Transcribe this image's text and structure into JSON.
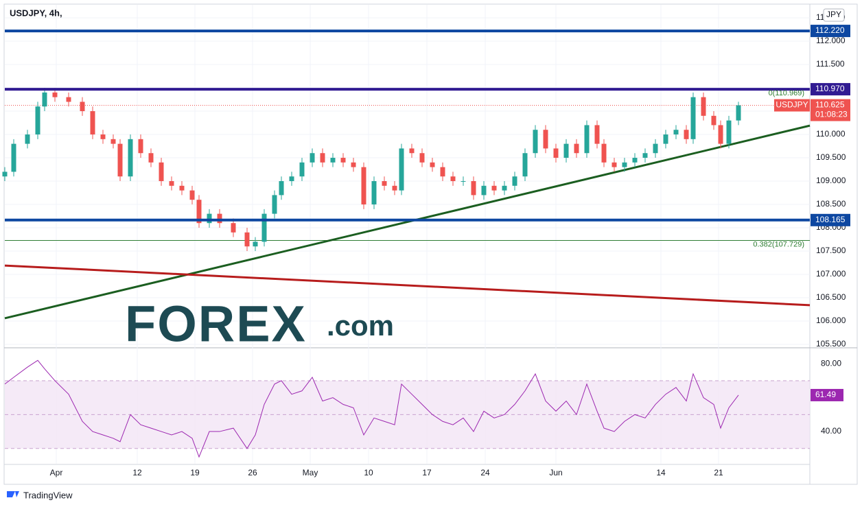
{
  "chart_data": {
    "type": "candlestick",
    "title": "USDJPY, 4h,",
    "currency": "JPY",
    "up_color": "#26a69a",
    "down_color": "#ef5350",
    "x": [
      0,
      13,
      33,
      48,
      58,
      73,
      93,
      113,
      128,
      143,
      158,
      168,
      183,
      198,
      213,
      228,
      243,
      258,
      273,
      283,
      298,
      313,
      333,
      353,
      365,
      378,
      393,
      403,
      418,
      433,
      448,
      463,
      478,
      493,
      508,
      523,
      538,
      553,
      568,
      578,
      593,
      608,
      623,
      638,
      653,
      668,
      683,
      698,
      713,
      728,
      743,
      758,
      773,
      788,
      803,
      818,
      833,
      848,
      863,
      873,
      888,
      903,
      918,
      933,
      948,
      963,
      978,
      993,
      1003,
      1018,
      1033,
      1043,
      1055,
      1069
    ],
    "open": [
      109.1,
      109.2,
      109.8,
      110.0,
      110.6,
      110.9,
      110.8,
      110.7,
      110.5,
      110.0,
      109.9,
      109.8,
      109.1,
      109.9,
      109.6,
      109.4,
      109.0,
      108.9,
      108.8,
      108.6,
      108.1,
      108.3,
      108.1,
      107.9,
      107.6,
      107.7,
      108.3,
      108.7,
      109.0,
      109.1,
      109.4,
      109.6,
      109.4,
      109.5,
      109.4,
      109.3,
      108.5,
      109.0,
      108.9,
      108.8,
      109.7,
      109.6,
      109.4,
      109.3,
      109.1,
      109.0,
      109.0,
      108.7,
      108.9,
      108.8,
      108.9,
      109.1,
      109.6,
      110.1,
      109.7,
      109.5,
      109.8,
      109.6,
      110.2,
      109.8,
      109.4,
      109.3,
      109.4,
      109.5,
      109.6,
      109.8,
      110.0,
      110.1,
      109.9,
      110.8,
      110.4,
      110.2,
      109.8,
      110.3
    ],
    "high": [
      109.3,
      109.9,
      110.1,
      110.7,
      111.0,
      111.0,
      110.9,
      110.8,
      110.6,
      110.1,
      110.0,
      109.9,
      110.0,
      110.0,
      109.7,
      109.5,
      109.1,
      109.0,
      108.9,
      108.7,
      108.4,
      108.4,
      108.2,
      108.0,
      107.8,
      108.4,
      108.8,
      109.1,
      109.2,
      109.5,
      109.7,
      109.7,
      109.6,
      109.6,
      109.5,
      109.4,
      109.1,
      109.1,
      109.0,
      109.8,
      109.8,
      109.7,
      109.5,
      109.4,
      109.2,
      109.1,
      109.1,
      109.0,
      109.0,
      109.0,
      109.2,
      109.7,
      110.2,
      110.2,
      109.8,
      109.9,
      109.9,
      110.3,
      110.3,
      109.9,
      109.5,
      109.5,
      109.6,
      109.7,
      109.9,
      110.1,
      110.2,
      110.2,
      110.9,
      110.9,
      110.5,
      110.3,
      110.4,
      110.7
    ],
    "low": [
      109.0,
      109.1,
      109.7,
      109.9,
      110.5,
      110.7,
      110.6,
      110.4,
      109.9,
      109.8,
      109.7,
      109.0,
      109.0,
      109.5,
      109.3,
      108.9,
      108.8,
      108.7,
      108.5,
      108.0,
      108.0,
      108.0,
      107.8,
      107.5,
      107.5,
      107.6,
      108.2,
      108.6,
      108.9,
      109.0,
      109.3,
      109.3,
      109.3,
      109.3,
      109.2,
      108.4,
      108.4,
      108.8,
      108.7,
      108.7,
      109.5,
      109.3,
      109.2,
      109.0,
      108.9,
      108.9,
      108.6,
      108.6,
      108.7,
      108.7,
      108.8,
      109.0,
      109.5,
      109.6,
      109.4,
      109.4,
      109.5,
      109.5,
      109.7,
      109.3,
      109.2,
      109.2,
      109.3,
      109.4,
      109.5,
      109.7,
      109.9,
      109.8,
      109.8,
      110.3,
      110.1,
      109.7,
      109.7,
      110.2
    ],
    "close": [
      109.2,
      109.8,
      110.0,
      110.6,
      110.9,
      110.8,
      110.7,
      110.5,
      110.0,
      109.9,
      109.8,
      109.1,
      109.9,
      109.6,
      109.4,
      109.0,
      108.9,
      108.8,
      108.6,
      108.1,
      108.3,
      108.1,
      107.9,
      107.6,
      107.7,
      108.3,
      108.7,
      109.0,
      109.1,
      109.4,
      109.6,
      109.4,
      109.5,
      109.4,
      109.3,
      108.5,
      109.0,
      108.9,
      108.8,
      109.7,
      109.6,
      109.4,
      109.3,
      109.1,
      109.0,
      109.0,
      108.7,
      108.9,
      108.8,
      108.9,
      109.1,
      109.6,
      110.1,
      109.7,
      109.5,
      109.8,
      109.6,
      110.2,
      109.8,
      109.4,
      109.3,
      109.4,
      109.5,
      109.6,
      109.8,
      110.0,
      110.1,
      109.9,
      110.8,
      110.4,
      110.2,
      109.8,
      110.3,
      110.625
    ],
    "xlim": [
      0,
      1173
    ],
    "xticks": [
      {
        "value": 75,
        "label": "Apr"
      },
      {
        "value": 193,
        "label": "12"
      },
      {
        "value": 277,
        "label": "19"
      },
      {
        "value": 361,
        "label": "26"
      },
      {
        "value": 445,
        "label": "May"
      },
      {
        "value": 530,
        "label": "10"
      },
      {
        "value": 615,
        "label": "17"
      },
      {
        "value": 700,
        "label": "24"
      },
      {
        "value": 803,
        "label": "Jun"
      },
      {
        "value": 956,
        "label": "14"
      },
      {
        "value": 1040,
        "label": "21"
      }
    ],
    "ylim": [
      105.456,
      112.78
    ],
    "yticks": [
      {
        "value": 105.5,
        "label": "105.500"
      },
      {
        "value": 106,
        "label": "106.000"
      },
      {
        "value": 106.5,
        "label": "106.500"
      },
      {
        "value": 107,
        "label": "107.000"
      },
      {
        "value": 107.5,
        "label": "107.500"
      },
      {
        "value": 108,
        "label": "108.000"
      },
      {
        "value": 108.5,
        "label": "108.500"
      },
      {
        "value": 109,
        "label": "109.000"
      },
      {
        "value": 109.5,
        "label": "109.500"
      },
      {
        "value": 110,
        "label": "110.000"
      },
      {
        "value": 110.5,
        "label": "110.500"
      },
      {
        "value": 111,
        "label": "111.000"
      },
      {
        "value": 111.5,
        "label": "111.500"
      },
      {
        "value": 112,
        "label": "112.000"
      },
      {
        "value": 112.5,
        "label": "112.500"
      }
    ],
    "grid": true,
    "levels": [
      {
        "value": 112.22,
        "label": "112.220",
        "color": "#0d47a1"
      },
      {
        "value": 110.97,
        "label": "110.970",
        "color": "#311b92"
      },
      {
        "value": 108.165,
        "label": "108.165",
        "color": "#0d47a1"
      }
    ],
    "fib": {
      "color": "#2e7d32",
      "lines": [
        {
          "value": 110.969,
          "label": "0(110.969)"
        },
        {
          "value": 107.729,
          "label": "0.382(107.729)"
        }
      ]
    },
    "trendlines": [
      {
        "color": "#1b5e20",
        "x": [
          0,
          1173
        ],
        "y": [
          106.06,
          110.19
        ]
      },
      {
        "color": "#b71c1c",
        "x": [
          0,
          1173
        ],
        "y": [
          107.19,
          106.34
        ]
      }
    ],
    "last_price": {
      "symbol": "USDJPY",
      "value": 110.625,
      "countdown": "01:08:23",
      "color": "#ef5350"
    },
    "rsi": {
      "color": "#9c27b0",
      "values": [
        68,
        72,
        78,
        82,
        77,
        70,
        62,
        46,
        40,
        38,
        36,
        34,
        50,
        44,
        42,
        40,
        38,
        40,
        36,
        25,
        40,
        40,
        42,
        30,
        38,
        56,
        68,
        70,
        62,
        64,
        72,
        58,
        60,
        56,
        54,
        38,
        48,
        46,
        44,
        68,
        62,
        56,
        50,
        46,
        44,
        48,
        40,
        52,
        48,
        50,
        56,
        64,
        74,
        58,
        52,
        58,
        50,
        68,
        52,
        42,
        40,
        46,
        50,
        48,
        56,
        62,
        66,
        58,
        74,
        60,
        56,
        42,
        54,
        61.49
      ],
      "ylim": [
        21,
        89
      ],
      "yticks": [
        {
          "value": 40,
          "label": "40.00"
        },
        {
          "value": 80,
          "label": "80.00"
        }
      ],
      "band": [
        30,
        70
      ],
      "midline": 50
    },
    "logo": {
      "main": "FOREX",
      "suffix": ".com"
    },
    "footer": "TradingView"
  }
}
